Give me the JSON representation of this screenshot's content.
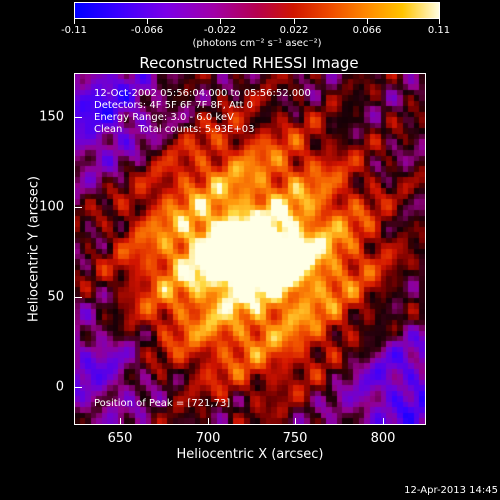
{
  "colorbar": {
    "ticks": [
      "-0.11",
      "-0.066",
      "-0.022",
      "0.022",
      "0.066",
      "0.11"
    ],
    "units": "(photons cm⁻² s⁻¹ asec⁻²)"
  },
  "title": "Reconstructed RHESSI Image",
  "info": {
    "time": "12-Oct-2002 05:56:04.000 to 05:56:52.000",
    "detectors": "Detectors: 4F 5F 6F 7F 8F, Att 0",
    "energy": "Energy Range: 3.0 - 6.0 keV",
    "clean": "Clean     Total counts: 5.93E+03",
    "peak": "Position of Peak = [721,73]"
  },
  "axes": {
    "xlabel": "Heliocentric X (arcsec)",
    "ylabel": "Heliocentric Y (arcsec)",
    "xticks": [
      "650",
      "700",
      "750",
      "800"
    ],
    "yticks": [
      "0",
      "50",
      "100",
      "150"
    ]
  },
  "footer": {
    "timestamp": "12-Apr-2013 14:45"
  },
  "chart_data": {
    "type": "heatmap",
    "title": "Reconstructed RHESSI Image",
    "xlabel": "Heliocentric X (arcsec)",
    "ylabel": "Heliocentric Y (arcsec)",
    "xlim": [
      625,
      818
    ],
    "ylim": [
      -21,
      172
    ],
    "colorbar_range": [
      -0.11,
      0.11
    ],
    "colormap": "blue-purple-red-yellow-white",
    "peak": [
      721,
      73
    ],
    "colors": {
      "background": "#000000",
      "text": "#ffffff"
    }
  }
}
